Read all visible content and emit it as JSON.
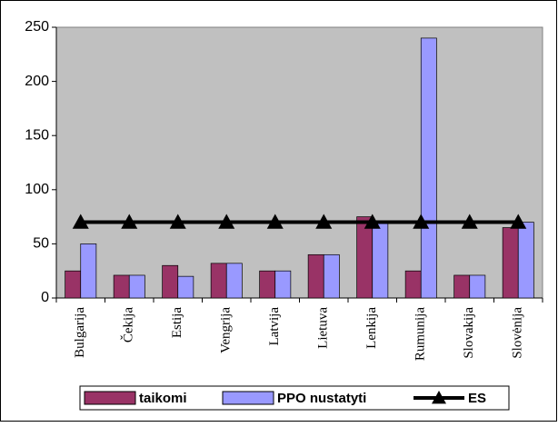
{
  "chart_data": {
    "type": "bar",
    "categories": [
      "Bulgarija",
      "Čekija",
      "Estija",
      "Vengrija",
      "Latvija",
      "Lietuva",
      "Lenkija",
      "Rumunija",
      "Slovakija",
      "Slovėnija"
    ],
    "series": [
      {
        "name": "taikomi",
        "type": "bar",
        "color": "#993366",
        "values": [
          25,
          21,
          30,
          32,
          25,
          40,
          75,
          25,
          21,
          65
        ]
      },
      {
        "name": "PPO nustatyti",
        "type": "bar",
        "color": "#9999ff",
        "values": [
          50,
          21,
          20,
          32,
          25,
          40,
          70,
          240,
          21,
          70
        ]
      },
      {
        "name": "ES",
        "type": "line",
        "color": "#000000",
        "values": [
          70,
          70,
          70,
          70,
          70,
          70,
          70,
          70,
          70,
          70
        ]
      }
    ],
    "ylim": [
      0,
      250
    ],
    "yticks": [
      0,
      50,
      100,
      150,
      200,
      250
    ],
    "grid": false,
    "legend": "bottom",
    "plot_background": "#c0c0c0"
  }
}
